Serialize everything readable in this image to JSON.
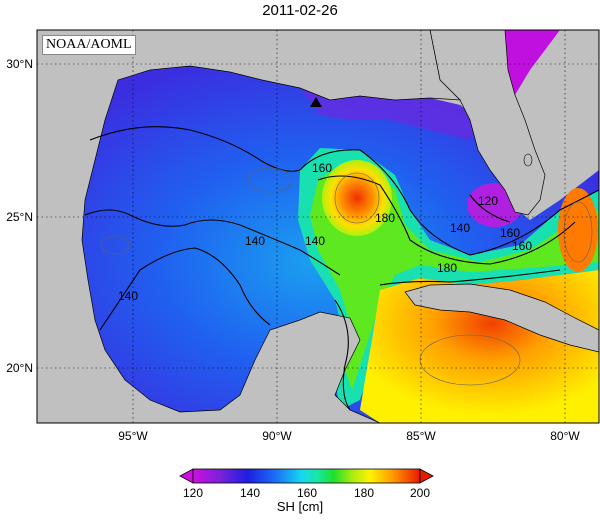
{
  "title": "2011-02-26",
  "credit": "NOAA/AOML",
  "axes": {
    "lon_ticks": [
      "95°W",
      "90°W",
      "85°W",
      "80°W"
    ],
    "lat_ticks": [
      "30°N",
      "25°N",
      "20°N"
    ]
  },
  "contour_labels": [
    "120",
    "140",
    "140",
    "140",
    "140",
    "160",
    "160",
    "160",
    "180",
    "180"
  ],
  "colorbar": {
    "label": "SH [cm]",
    "ticks": [
      "120",
      "140",
      "160",
      "180",
      "200"
    ],
    "min": 120,
    "max": 200
  },
  "marker": "triangle-icon",
  "colors": {
    "land": "#c0c0c0",
    "low": "#9a22d8",
    "mid": "#2a55f0",
    "warm": "#ffdd00",
    "hot": "#e82000"
  }
}
